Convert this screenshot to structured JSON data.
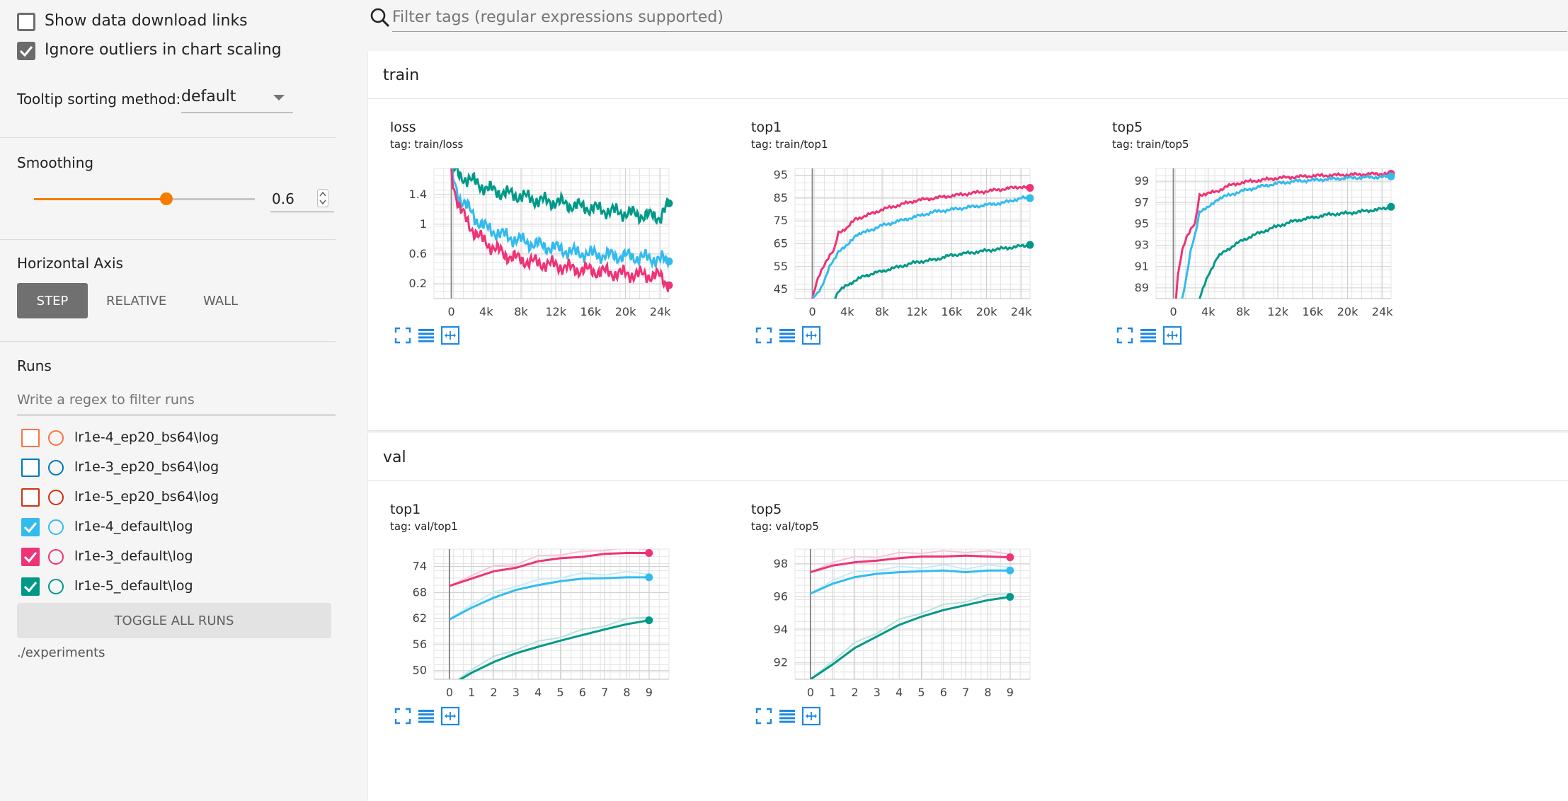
{
  "sidebar": {
    "show_download_label": "Show data download links",
    "ignore_outliers_label": "Ignore outliers in chart scaling",
    "tooltip_label": "Tooltip sorting method:",
    "tooltip_value": "default",
    "smoothing_label": "Smoothing",
    "smoothing_value": "0.6",
    "smoothing_fraction": 0.6,
    "haxis_label": "Horizontal Axis",
    "haxis_options": [
      "STEP",
      "RELATIVE",
      "WALL"
    ],
    "runs_label": "Runs",
    "runs_filter_placeholder": "Write a regex to filter runs",
    "runs": [
      {
        "name": "lr1e-4_ep20_bs64\\log",
        "color": "#ff7043",
        "checked": false
      },
      {
        "name": "lr1e-3_ep20_bs64\\log",
        "color": "#0077bb",
        "checked": false
      },
      {
        "name": "lr1e-5_ep20_bs64\\log",
        "color": "#cc3311",
        "checked": false
      },
      {
        "name": "lr1e-4_default\\log",
        "color": "#33bbee",
        "checked": true
      },
      {
        "name": "lr1e-3_default\\log",
        "color": "#ee3377",
        "checked": true
      },
      {
        "name": "lr1e-5_default\\log",
        "color": "#009988",
        "checked": true
      }
    ],
    "toggle_all_label": "TOGGLE ALL RUNS",
    "logdir": "./experiments"
  },
  "search": {
    "placeholder": "Filter tags (regular expressions supported)"
  },
  "sections": {
    "train": "train",
    "val": "val"
  },
  "charts": {
    "train_loss": {
      "title": "loss",
      "tag": "tag: train/loss"
    },
    "train_top1": {
      "title": "top1",
      "tag": "tag: train/top1"
    },
    "train_top5": {
      "title": "top5",
      "tag": "tag: train/top5"
    },
    "val_top1": {
      "title": "top1",
      "tag": "tag: val/top1"
    },
    "val_top5": {
      "title": "top5",
      "tag": "tag: val/top5"
    }
  },
  "chart_data": [
    {
      "id": "train_loss",
      "type": "line",
      "title": "loss",
      "xlim": [
        -2000,
        25000
      ],
      "ylim": [
        0,
        1.75
      ],
      "x_ticks": [
        "0",
        "4k",
        "8k",
        "12k",
        "16k",
        "20k",
        "24k"
      ],
      "x_tick_values": [
        0,
        4000,
        8000,
        12000,
        16000,
        20000,
        24000
      ],
      "y_ticks": [
        "0.2",
        "0.6",
        "1",
        "1.4"
      ],
      "y_tick_values": [
        0.2,
        0.6,
        1.0,
        1.4
      ],
      "series": [
        {
          "color": "#009988",
          "x": [
            0,
            500,
            1000,
            2000,
            3000,
            4000,
            6000,
            8000,
            10000,
            12000,
            14000,
            16000,
            18000,
            20000,
            22000,
            24000,
            25000
          ],
          "y": [
            1.75,
            1.7,
            1.65,
            1.6,
            1.55,
            1.48,
            1.42,
            1.38,
            1.32,
            1.3,
            1.25,
            1.22,
            1.18,
            1.15,
            1.12,
            1.1,
            1.28
          ]
        },
        {
          "color": "#33bbee",
          "x": [
            0,
            500,
            1000,
            2000,
            3000,
            4000,
            6000,
            8000,
            10000,
            12000,
            14000,
            16000,
            18000,
            20000,
            22000,
            24000,
            25000
          ],
          "y": [
            1.7,
            1.5,
            1.35,
            1.2,
            1.05,
            0.95,
            0.85,
            0.78,
            0.72,
            0.68,
            0.62,
            0.6,
            0.58,
            0.57,
            0.55,
            0.53,
            0.5
          ]
        },
        {
          "color": "#ee3377",
          "x": [
            0,
            500,
            1000,
            2000,
            3000,
            4000,
            6000,
            8000,
            10000,
            12000,
            14000,
            16000,
            18000,
            20000,
            22000,
            24000,
            25000
          ],
          "y": [
            1.7,
            1.4,
            1.2,
            1.0,
            0.85,
            0.75,
            0.6,
            0.52,
            0.48,
            0.45,
            0.4,
            0.38,
            0.35,
            0.33,
            0.32,
            0.3,
            0.18
          ]
        }
      ]
    },
    {
      "id": "train_top1",
      "type": "line",
      "title": "top1",
      "xlim": [
        -2000,
        25000
      ],
      "ylim": [
        41,
        98
      ],
      "x_ticks": [
        "0",
        "4k",
        "8k",
        "12k",
        "16k",
        "20k",
        "24k"
      ],
      "x_tick_values": [
        0,
        4000,
        8000,
        12000,
        16000,
        20000,
        24000
      ],
      "y_ticks": [
        "45",
        "55",
        "65",
        "75",
        "85",
        "95"
      ],
      "y_tick_values": [
        45,
        55,
        65,
        75,
        85,
        95
      ],
      "series": [
        {
          "color": "#ee3377",
          "x": [
            0,
            500,
            1000,
            1500,
            2000,
            2500,
            3000,
            4000,
            5000,
            6000,
            8000,
            10000,
            12000,
            14000,
            16000,
            18000,
            20000,
            22000,
            24000,
            25000
          ],
          "y": [
            41,
            48,
            53,
            57,
            60,
            62,
            70,
            72,
            76,
            77,
            80,
            82,
            84,
            85,
            86,
            87,
            88,
            89,
            90,
            89.5
          ]
        },
        {
          "color": "#33bbee",
          "x": [
            0,
            500,
            1000,
            1500,
            2000,
            2500,
            3000,
            4000,
            5000,
            6000,
            8000,
            10000,
            12000,
            14000,
            16000,
            18000,
            20000,
            22000,
            24000,
            25000
          ],
          "y": [
            41,
            43,
            46,
            50,
            55,
            58,
            62,
            64,
            69,
            70,
            73,
            75,
            77,
            79,
            80,
            81,
            82,
            83,
            85,
            85
          ]
        },
        {
          "color": "#009988",
          "x": [
            2500,
            3000,
            4000,
            5000,
            6000,
            8000,
            10000,
            12000,
            14000,
            16000,
            18000,
            20000,
            22000,
            24000,
            25000
          ],
          "y": [
            41,
            44,
            47,
            49,
            51,
            53,
            55,
            57,
            58,
            60,
            61,
            62,
            63,
            64,
            64.5
          ]
        }
      ]
    },
    {
      "id": "train_top5",
      "type": "line",
      "title": "top5",
      "xlim": [
        -2000,
        25000
      ],
      "ylim": [
        88,
        100.2
      ],
      "x_ticks": [
        "0",
        "4k",
        "8k",
        "12k",
        "16k",
        "20k",
        "24k"
      ],
      "x_tick_values": [
        0,
        4000,
        8000,
        12000,
        16000,
        20000,
        24000
      ],
      "y_ticks": [
        "89",
        "91",
        "93",
        "95",
        "97",
        "99"
      ],
      "y_tick_values": [
        89,
        91,
        93,
        95,
        97,
        99
      ],
      "series": [
        {
          "color": "#ee3377",
          "x": [
            300,
            500,
            1000,
            1500,
            2000,
            2500,
            3000,
            4000,
            5000,
            6000,
            8000,
            10000,
            12000,
            14000,
            16000,
            18000,
            20000,
            22000,
            24000,
            25000
          ],
          "y": [
            88,
            90,
            92.5,
            93.8,
            94.5,
            95,
            97.7,
            97.9,
            98,
            98.5,
            98.9,
            99.1,
            99.3,
            99.4,
            99.5,
            99.55,
            99.6,
            99.65,
            99.7,
            99.7
          ]
        },
        {
          "color": "#33bbee",
          "x": [
            1000,
            1500,
            2000,
            2500,
            3000,
            4000,
            5000,
            6000,
            8000,
            10000,
            12000,
            14000,
            16000,
            18000,
            20000,
            22000,
            24000,
            25000
          ],
          "y": [
            88,
            90,
            92.5,
            94,
            96.2,
            96.5,
            97.3,
            97.6,
            98.1,
            98.5,
            98.8,
            99,
            99.1,
            99.2,
            99.3,
            99.35,
            99.4,
            99.45
          ]
        },
        {
          "color": "#009988",
          "x": [
            3000,
            4000,
            5000,
            6000,
            8000,
            10000,
            12000,
            14000,
            16000,
            18000,
            20000,
            22000,
            24000,
            25000
          ],
          "y": [
            88,
            90.2,
            91.8,
            92.5,
            93.5,
            94.2,
            94.8,
            95.3,
            95.6,
            95.9,
            96,
            96.2,
            96.4,
            96.6
          ]
        }
      ]
    },
    {
      "id": "val_top1",
      "type": "line",
      "title": "top1",
      "xlim": [
        -0.7,
        9.9
      ],
      "ylim": [
        48,
        78
      ],
      "x_ticks": [
        "0",
        "1",
        "2",
        "3",
        "4",
        "5",
        "6",
        "7",
        "8",
        "9"
      ],
      "x_tick_values": [
        0,
        1,
        2,
        3,
        4,
        5,
        6,
        7,
        8,
        9
      ],
      "y_ticks": [
        "50",
        "56",
        "62",
        "68",
        "74"
      ],
      "y_tick_values": [
        50,
        56,
        62,
        68,
        74
      ],
      "series": [
        {
          "color": "#ee3377",
          "x": [
            0,
            1,
            2,
            3,
            4,
            5,
            6,
            7,
            8,
            9
          ],
          "y": [
            69.5,
            71.2,
            72.9,
            73.7,
            75.2,
            75.9,
            76.2,
            76.9,
            77.1,
            77.1
          ]
        },
        {
          "color": "#33bbee",
          "x": [
            0,
            1,
            2,
            3,
            4,
            5,
            6,
            7,
            8,
            9
          ],
          "y": [
            61.8,
            64.5,
            66.8,
            68.6,
            69.7,
            70.6,
            71.2,
            71.3,
            71.5,
            71.5
          ]
        },
        {
          "color": "#009988",
          "x": [
            0,
            1,
            2,
            3,
            4,
            5,
            6,
            7,
            8,
            9
          ],
          "y": [
            46.5,
            49.5,
            52,
            54,
            55.5,
            56.9,
            58.2,
            59.5,
            60.7,
            61.6
          ]
        }
      ]
    },
    {
      "id": "val_top5",
      "type": "line",
      "title": "top5",
      "xlim": [
        -0.7,
        9.9
      ],
      "ylim": [
        91,
        98.9
      ],
      "x_ticks": [
        "0",
        "1",
        "2",
        "3",
        "4",
        "5",
        "6",
        "7",
        "8",
        "9"
      ],
      "x_tick_values": [
        0,
        1,
        2,
        3,
        4,
        5,
        6,
        7,
        8,
        9
      ],
      "y_ticks": [
        "92",
        "94",
        "96",
        "98"
      ],
      "y_tick_values": [
        92,
        94,
        96,
        98
      ],
      "series": [
        {
          "color": "#ee3377",
          "x": [
            0,
            1,
            2,
            3,
            4,
            5,
            6,
            7,
            8,
            9
          ],
          "y": [
            97.5,
            97.9,
            98.1,
            98.2,
            98.35,
            98.45,
            98.45,
            98.5,
            98.45,
            98.4
          ]
        },
        {
          "color": "#33bbee",
          "x": [
            0,
            1,
            2,
            3,
            4,
            5,
            6,
            7,
            8,
            9
          ],
          "y": [
            96.2,
            96.8,
            97.2,
            97.4,
            97.5,
            97.55,
            97.6,
            97.5,
            97.6,
            97.6
          ]
        },
        {
          "color": "#009988",
          "x": [
            0,
            1,
            2,
            3,
            4,
            5,
            6,
            7,
            8,
            9
          ],
          "y": [
            91,
            91.9,
            92.9,
            93.6,
            94.3,
            94.8,
            95.2,
            95.5,
            95.8,
            96
          ]
        }
      ]
    }
  ]
}
